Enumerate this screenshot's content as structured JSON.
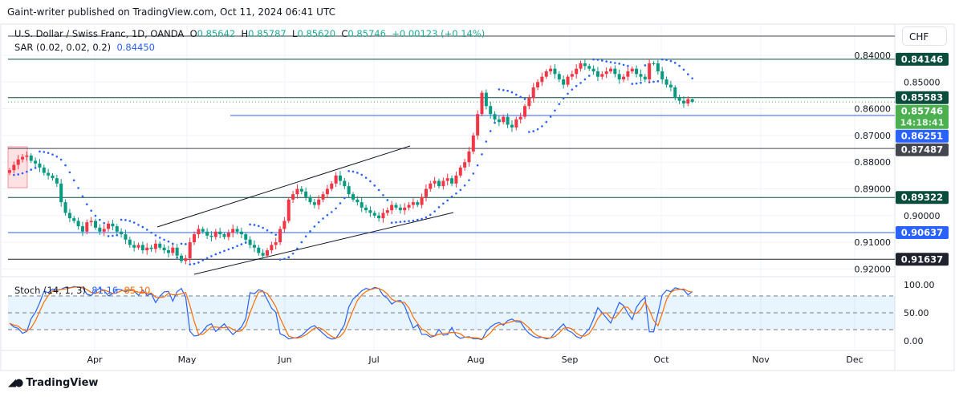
{
  "published": "Gaint-writer published on TradingView.com, Oct 11, 2024 06:41 UTC",
  "legend": {
    "symbol": "U.S. Dollar / Swiss Franc, 1D, OANDA",
    "o_label": "O",
    "o": "0.85642",
    "h_label": "H",
    "h": "0.85787",
    "l_label": "L",
    "l": "0.85620",
    "c_label": "C",
    "c": "0.85746",
    "change": "+0.00123 (+0.14%)",
    "sar_label": "SAR (0.02, 0.02, 0.2)",
    "sar_value": "0.84450",
    "stoch_label": "Stoch (14, 1, 3)",
    "stoch_k": "81.16",
    "stoch_d": "85.10"
  },
  "currency": "CHF",
  "brand": "TradingView",
  "colors": {
    "up": "#089981",
    "down": "#f23645",
    "sar": "#2962ff",
    "stoch_k": "#2962ff",
    "stoch_d": "#ff6d00"
  },
  "chart_data": {
    "type": "candlestick",
    "title": "U.S. Dollar / Swiss Franc, 1D, OANDA",
    "y_axis_inverted": true,
    "ylim": [
      0.84,
      0.92
    ],
    "y_ticks": [
      "0.84000",
      "0.85000",
      "0.86000",
      "0.87000",
      "0.88000",
      "0.89000",
      "0.90000",
      "0.91000",
      "0.92000"
    ],
    "x_ticks": [
      "Apr",
      "May",
      "Jun",
      "Jul",
      "Aug",
      "Sep",
      "Oct",
      "Nov",
      "Dec"
    ],
    "start_date": "2024-03-04",
    "end_date": "2024-10-11",
    "closes": [
      0.883,
      0.881,
      0.879,
      0.878,
      0.8775,
      0.8795,
      0.8805,
      0.882,
      0.884,
      0.885,
      0.886,
      0.888,
      0.895,
      0.899,
      0.901,
      0.902,
      0.904,
      0.906,
      0.9025,
      0.902,
      0.9045,
      0.906,
      0.905,
      0.903,
      0.904,
      0.906,
      0.907,
      0.909,
      0.911,
      0.912,
      0.911,
      0.913,
      0.912,
      0.9125,
      0.9105,
      0.912,
      0.913,
      0.914,
      0.912,
      0.915,
      0.917,
      0.916,
      0.91,
      0.907,
      0.905,
      0.906,
      0.9075,
      0.908,
      0.906,
      0.907,
      0.908,
      0.9065,
      0.905,
      0.906,
      0.907,
      0.909,
      0.911,
      0.912,
      0.914,
      0.915,
      0.913,
      0.911,
      0.91,
      0.905,
      0.902,
      0.894,
      0.892,
      0.89,
      0.891,
      0.893,
      0.895,
      0.896,
      0.894,
      0.892,
      0.89,
      0.888,
      0.885,
      0.887,
      0.889,
      0.892,
      0.894,
      0.895,
      0.897,
      0.898,
      0.899,
      0.9,
      0.901,
      0.899,
      0.898,
      0.896,
      0.897,
      0.898,
      0.897,
      0.896,
      0.895,
      0.896,
      0.893,
      0.89,
      0.888,
      0.887,
      0.889,
      0.887,
      0.886,
      0.888,
      0.885,
      0.882,
      0.88,
      0.876,
      0.87,
      0.862,
      0.854,
      0.859,
      0.862,
      0.864,
      0.865,
      0.863,
      0.866,
      0.867,
      0.864,
      0.863,
      0.859,
      0.856,
      0.852,
      0.85,
      0.848,
      0.846,
      0.845,
      0.847,
      0.849,
      0.851,
      0.848,
      0.847,
      0.845,
      0.843,
      0.844,
      0.845,
      0.846,
      0.848,
      0.847,
      0.846,
      0.845,
      0.847,
      0.849,
      0.848,
      0.846,
      0.845,
      0.847,
      0.848,
      0.849,
      0.843,
      0.843,
      0.846,
      0.849,
      0.851,
      0.852,
      0.856,
      0.857,
      0.858,
      0.85642,
      0.85746
    ],
    "last_bar": {
      "open": 0.85642,
      "high": 0.85787,
      "low": 0.8562,
      "close": 0.85746
    },
    "levels": [
      {
        "value": 0.84146,
        "label": "0.84146",
        "color": "#0b4d3c"
      },
      {
        "value": 0.85583,
        "label": "0.85583",
        "color": "#0b4d3c"
      },
      {
        "value": 0.86251,
        "label": "0.86251",
        "color": "#2962ff"
      },
      {
        "value": 0.87487,
        "label": "0.87487",
        "color": "#434651"
      },
      {
        "value": 0.89322,
        "label": "0.89322",
        "color": "#0b4d3c"
      },
      {
        "value": 0.90637,
        "label": "0.90637",
        "color": "#2962ff"
      },
      {
        "value": 0.91637,
        "label": "0.91637",
        "color": "#1e222d"
      }
    ],
    "current_price": {
      "label": "0.85746",
      "countdown": "14:18:41",
      "color": "#4caf50"
    },
    "stoch": {
      "ylim": [
        0,
        100
      ],
      "bands": [
        20,
        50,
        80
      ],
      "y_ticks": [
        "100.00",
        "50.00",
        "0.00"
      ]
    }
  }
}
